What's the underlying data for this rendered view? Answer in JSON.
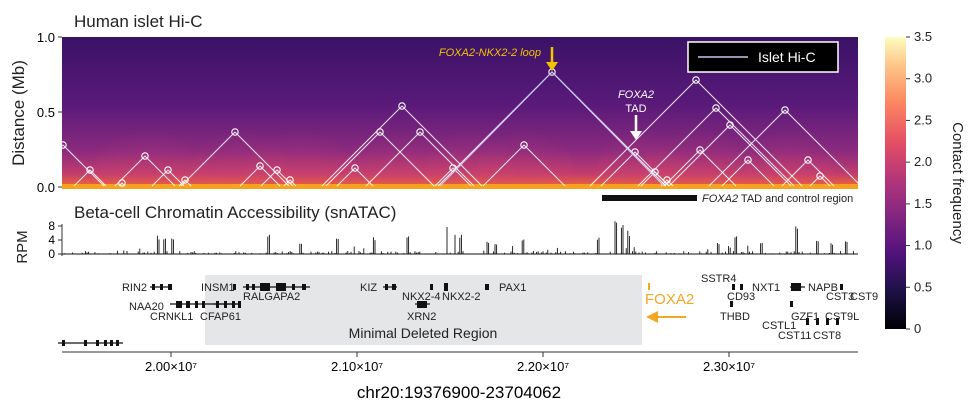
{
  "hic": {
    "title": "Human islet Hi-C",
    "ylabel": "Distance (Mb)",
    "yticks": [
      "1.0",
      "0.5",
      "0.0"
    ],
    "legend_label": "Islet Hi-C",
    "loop_label": "FOXA2-NKX2-2 loop",
    "tad_label_gene": "FOXA2",
    "tad_label_word": "TAD",
    "control_region_label": "FOXA2 TAD and control region",
    "loop_arrow_color": "#f2c400",
    "tad_arrow_color": "#ffffff"
  },
  "colorbar": {
    "label": "Contact frequency",
    "ticks": [
      "3.5",
      "3.0",
      "2.5",
      "2.0",
      "1.5",
      "1.0",
      "0.5",
      "0"
    ],
    "colors": [
      "#000004",
      "#1d1147",
      "#51127c",
      "#832681",
      "#b73779",
      "#e75263",
      "#fc8961",
      "#fec488",
      "#fcfdbf"
    ]
  },
  "atac": {
    "title": "Beta-cell Chromatin Accessibility (snATAC)",
    "ylabel": "RPM",
    "yticks": [
      "8",
      "4",
      "0"
    ]
  },
  "genes": {
    "rin2": "RIN2",
    "naa20": "NAA20",
    "crnkl1": "CRNKL1",
    "insm1": "INSM1",
    "cfap61": "CFAP61",
    "ralgapa2": "RALGAPA2",
    "kiz": "KIZ",
    "nkx2_4": "NKX2-4",
    "nkx2_2": "NKX2-2",
    "xrn2": "XRN2",
    "pax1": "PAX1",
    "foxa2": "FOXA2",
    "sstr4": "SSTR4",
    "cd93": "CD93",
    "nxt1": "NXT1",
    "napb": "NAPB",
    "cst3": "CST3",
    "cst9": "CST9",
    "thbd": "THBD",
    "gzf1": "GZF1",
    "cst9l": "CST9L",
    "cstl1": "CSTL1",
    "cst11": "CST11",
    "cst8": "CST8"
  },
  "foxa2_color": "#f5a623",
  "mdr_label": "Minimal Deleted Region",
  "xaxis": {
    "ticks": [
      "2.00×10⁷",
      "2.10×10⁷",
      "2.20×10⁷",
      "2.30×10⁷"
    ],
    "label": "chr20:19376900-23704062"
  }
}
